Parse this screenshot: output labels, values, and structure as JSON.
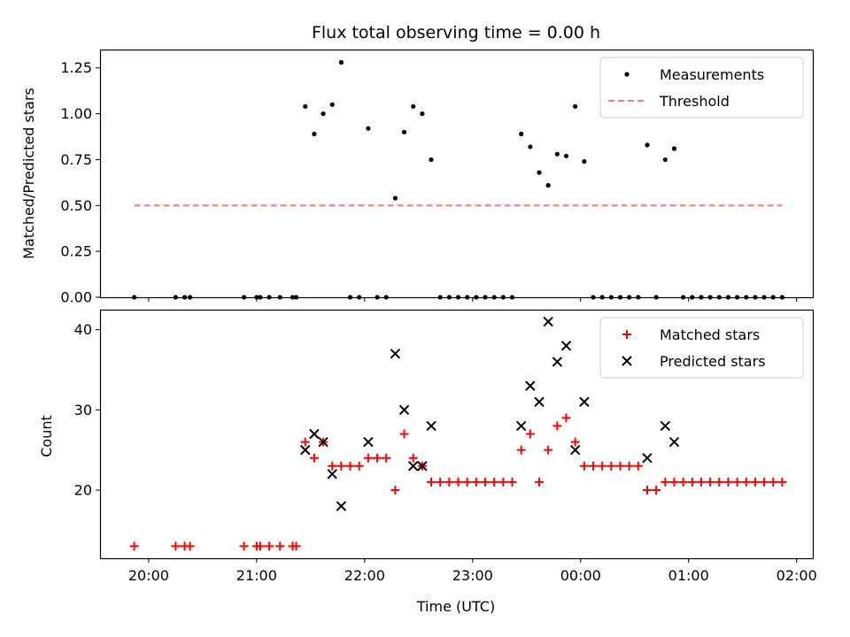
{
  "chart_data": [
    {
      "type": "scatter",
      "title": "Flux total observing time = 0.00 h",
      "xlabel": "",
      "ylabel": "Matched/Predicted stars",
      "x_unit": "hours (UTC)",
      "xlim": [
        "19:33",
        "02:09"
      ],
      "ylim": [
        0,
        1.35
      ],
      "yticks": [
        "0.00",
        "0.25",
        "0.50",
        "0.75",
        "1.00",
        "1.25"
      ],
      "legend_position": "top-right",
      "series": [
        {
          "name": "Measurements",
          "color": "#000000",
          "marker": "dot",
          "points": [
            [
              "19:52",
              0
            ],
            [
              "20:15",
              0
            ],
            [
              "20:20",
              0
            ],
            [
              "20:23",
              0
            ],
            [
              "20:53",
              0
            ],
            [
              "21:00",
              0
            ],
            [
              "21:02",
              0
            ],
            [
              "21:07",
              0
            ],
            [
              "21:13",
              0
            ],
            [
              "21:20",
              0
            ],
            [
              "21:22",
              0
            ],
            [
              "21:27",
              1.04
            ],
            [
              "21:32",
              0.89
            ],
            [
              "21:37",
              1.0
            ],
            [
              "21:42",
              1.05
            ],
            [
              "21:47",
              1.28
            ],
            [
              "21:52",
              0
            ],
            [
              "21:57",
              0
            ],
            [
              "22:02",
              0.92
            ],
            [
              "22:07",
              0
            ],
            [
              "22:12",
              0
            ],
            [
              "22:17",
              0.54
            ],
            [
              "22:22",
              0.9
            ],
            [
              "22:27",
              1.04
            ],
            [
              "22:32",
              1.0
            ],
            [
              "22:37",
              0.75
            ],
            [
              "22:42",
              0
            ],
            [
              "22:47",
              0
            ],
            [
              "22:52",
              0
            ],
            [
              "22:57",
              0
            ],
            [
              "23:02",
              0
            ],
            [
              "23:07",
              0
            ],
            [
              "23:12",
              0
            ],
            [
              "23:17",
              0
            ],
            [
              "23:22",
              0
            ],
            [
              "23:27",
              0.89
            ],
            [
              "23:32",
              0.82
            ],
            [
              "23:37",
              0.68
            ],
            [
              "23:42",
              0.61
            ],
            [
              "23:47",
              0.78
            ],
            [
              "23:52",
              0.77
            ],
            [
              "23:57",
              1.04
            ],
            [
              "00:02",
              0.74
            ],
            [
              "00:07",
              0
            ],
            [
              "00:12",
              0
            ],
            [
              "00:17",
              0
            ],
            [
              "00:22",
              0
            ],
            [
              "00:27",
              0
            ],
            [
              "00:32",
              0
            ],
            [
              "00:37",
              0.83
            ],
            [
              "00:42",
              0
            ],
            [
              "00:47",
              0.75
            ],
            [
              "00:52",
              0.81
            ],
            [
              "00:57",
              0
            ],
            [
              "01:02",
              0
            ],
            [
              "01:07",
              0
            ],
            [
              "01:12",
              0
            ],
            [
              "01:17",
              0
            ],
            [
              "01:22",
              0
            ],
            [
              "01:27",
              0
            ],
            [
              "01:32",
              0
            ],
            [
              "01:37",
              0
            ],
            [
              "01:42",
              0
            ],
            [
              "01:47",
              0
            ],
            [
              "01:52",
              0
            ]
          ]
        },
        {
          "name": "Threshold",
          "color": "#ff7777",
          "line_style": "dashed",
          "points": [
            [
              "19:52",
              0.5
            ],
            [
              "01:52",
              0.5
            ]
          ]
        }
      ]
    },
    {
      "type": "scatter",
      "title": "",
      "xlabel": "Time (UTC)",
      "ylabel": "Count",
      "x_unit": "hours (UTC)",
      "xlim": [
        "19:33",
        "02:09"
      ],
      "ylim": [
        11.5,
        42.5
      ],
      "yticks": [
        "20",
        "30",
        "40"
      ],
      "xticks": [
        "20:00",
        "21:00",
        "22:00",
        "23:00",
        "00:00",
        "01:00",
        "02:00"
      ],
      "legend_position": "top-right",
      "series": [
        {
          "name": "Matched stars",
          "color": "#ff0000",
          "marker": "plus",
          "points": [
            [
              "19:52",
              13
            ],
            [
              "20:15",
              13
            ],
            [
              "20:20",
              13
            ],
            [
              "20:23",
              13
            ],
            [
              "20:53",
              13
            ],
            [
              "21:00",
              13
            ],
            [
              "21:02",
              13
            ],
            [
              "21:07",
              13
            ],
            [
              "21:13",
              13
            ],
            [
              "21:20",
              13
            ],
            [
              "21:22",
              13
            ],
            [
              "21:27",
              26
            ],
            [
              "21:32",
              24
            ],
            [
              "21:37",
              26
            ],
            [
              "21:42",
              23
            ],
            [
              "21:47",
              23
            ],
            [
              "21:52",
              23
            ],
            [
              "21:57",
              23
            ],
            [
              "22:02",
              24
            ],
            [
              "22:07",
              24
            ],
            [
              "22:12",
              24
            ],
            [
              "22:17",
              20
            ],
            [
              "22:22",
              27
            ],
            [
              "22:27",
              24
            ],
            [
              "22:32",
              23
            ],
            [
              "22:37",
              21
            ],
            [
              "22:42",
              21
            ],
            [
              "22:47",
              21
            ],
            [
              "22:52",
              21
            ],
            [
              "22:57",
              21
            ],
            [
              "23:02",
              21
            ],
            [
              "23:07",
              21
            ],
            [
              "23:12",
              21
            ],
            [
              "23:17",
              21
            ],
            [
              "23:22",
              21
            ],
            [
              "23:27",
              25
            ],
            [
              "23:32",
              27
            ],
            [
              "23:37",
              21
            ],
            [
              "23:42",
              25
            ],
            [
              "23:47",
              28
            ],
            [
              "23:52",
              29
            ],
            [
              "23:57",
              26
            ],
            [
              "00:02",
              23
            ],
            [
              "00:07",
              23
            ],
            [
              "00:12",
              23
            ],
            [
              "00:17",
              23
            ],
            [
              "00:22",
              23
            ],
            [
              "00:27",
              23
            ],
            [
              "00:32",
              23
            ],
            [
              "00:37",
              20
            ],
            [
              "00:42",
              20
            ],
            [
              "00:47",
              21
            ],
            [
              "00:52",
              21
            ],
            [
              "00:57",
              21
            ],
            [
              "01:02",
              21
            ],
            [
              "01:07",
              21
            ],
            [
              "01:12",
              21
            ],
            [
              "01:17",
              21
            ],
            [
              "01:22",
              21
            ],
            [
              "01:27",
              21
            ],
            [
              "01:32",
              21
            ],
            [
              "01:37",
              21
            ],
            [
              "01:42",
              21
            ],
            [
              "01:47",
              21
            ],
            [
              "01:52",
              21
            ]
          ]
        },
        {
          "name": "Predicted stars",
          "color": "#000000",
          "marker": "x",
          "points": [
            [
              "21:27",
              25
            ],
            [
              "21:32",
              27
            ],
            [
              "21:37",
              26
            ],
            [
              "21:42",
              22
            ],
            [
              "21:47",
              18
            ],
            [
              "22:02",
              26
            ],
            [
              "22:17",
              37
            ],
            [
              "22:22",
              30
            ],
            [
              "22:27",
              23
            ],
            [
              "22:32",
              23
            ],
            [
              "22:37",
              28
            ],
            [
              "23:27",
              28
            ],
            [
              "23:32",
              33
            ],
            [
              "23:37",
              31
            ],
            [
              "23:42",
              41
            ],
            [
              "23:47",
              36
            ],
            [
              "23:52",
              38
            ],
            [
              "23:57",
              25
            ],
            [
              "00:02",
              31
            ],
            [
              "00:37",
              24
            ],
            [
              "00:47",
              28
            ],
            [
              "00:52",
              26
            ]
          ]
        }
      ]
    }
  ]
}
